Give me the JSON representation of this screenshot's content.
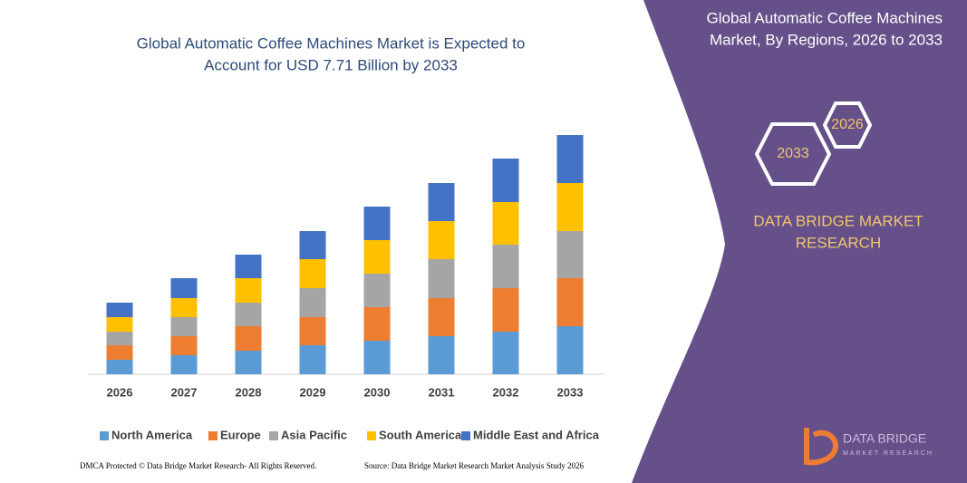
{
  "chart_data": {
    "type": "stacked-bar",
    "title": [
      "Global Automatic Coffee Machines Market is Expected to",
      "Account for USD 7.71 Billion by 2033"
    ],
    "categories": [
      "2026",
      "2027",
      "2028",
      "2029",
      "2030",
      "2031",
      "2032",
      "2033"
    ],
    "series": [
      {
        "name": "North America",
        "color": "#5b9bd5",
        "values": [
          16,
          21,
          26,
          32,
          37,
          42,
          47,
          53
        ]
      },
      {
        "name": "Europe",
        "color": "#ed7d31",
        "values": [
          16,
          21,
          27,
          31,
          37,
          42,
          48,
          53
        ]
      },
      {
        "name": "Asia Pacific",
        "color": "#a5a5a5",
        "values": [
          15,
          21,
          26,
          32,
          37,
          43,
          48,
          52
        ]
      },
      {
        "name": "South America",
        "color": "#ffc000",
        "values": [
          16,
          21,
          27,
          32,
          37,
          42,
          47,
          53
        ]
      },
      {
        "name": "Middle East and Africa",
        "color": "#4472c4",
        "values": [
          16,
          22,
          26,
          31,
          37,
          42,
          48,
          53
        ]
      }
    ]
  },
  "panel": {
    "title": [
      "Global Automatic Coffee Machines",
      "Market, By Regions, 2026 to 2033"
    ],
    "hexagons": [
      "2026",
      "2033"
    ],
    "brand": [
      "DATA BRIDGE MARKET",
      "RESEARCH"
    ]
  },
  "logo": {
    "name": "DATA BRIDGE",
    "tagline": "MARKET RESEARCH"
  },
  "footer": {
    "left": "DMCA Protected © Data Bridge Market Research- All Rights Reserved.",
    "right": "Source: Data Bridge Market Research Market Analysis Study 2026"
  }
}
